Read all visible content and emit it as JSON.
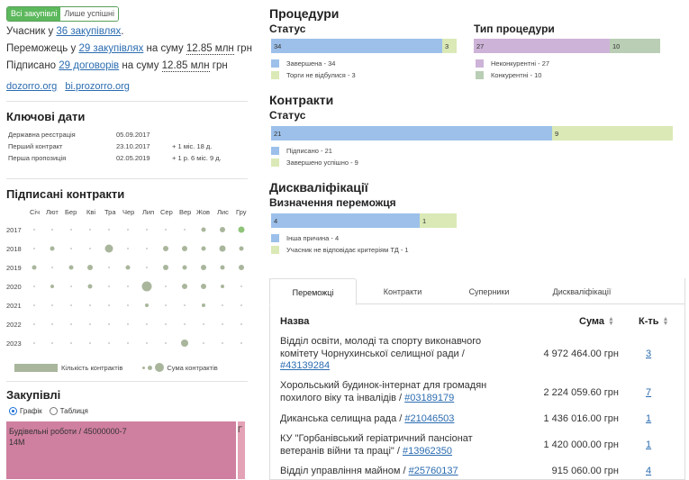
{
  "toggle": {
    "all": "Всі закупівлі",
    "won": "Лише успішні"
  },
  "summary": {
    "participant_prefix": "Учасник у ",
    "participant_link": "36 закупівлях",
    "participant_suffix": ".",
    "winner_prefix": "Переможець у ",
    "winner_link": "29 закупівлях",
    "winner_mid": " на суму ",
    "winner_amount": "12.85 млн",
    "winner_currency": " грн",
    "signed_prefix": "Підписано ",
    "signed_link": "29 договорів",
    "signed_mid": " на суму ",
    "signed_amount": "12.85 млн",
    "signed_currency": " грн"
  },
  "external_links": {
    "dozorro": "dozorro.org",
    "biprozorro": "bi.prozorro.org"
  },
  "key_dates": {
    "title": "Ключові дати",
    "rows": [
      {
        "label": "Державна реєстрація",
        "date": "05.09.2017",
        "delta": ""
      },
      {
        "label": "Перший контракт",
        "date": "23.10.2017",
        "delta": "+ 1 міс. 18 д."
      },
      {
        "label": "Перша пропозиція",
        "date": "02.05.2019",
        "delta": "+ 1 р. 6 міс. 9 д."
      }
    ]
  },
  "signed_contracts": {
    "title": "Підписані контракти",
    "months": [
      "Січ",
      "Лют",
      "Бер",
      "Кві",
      "Тра",
      "Чер",
      "Лип",
      "Сер",
      "Вер",
      "Жов",
      "Лис",
      "Гру"
    ],
    "years": [
      "2017",
      "2018",
      "2019",
      "2020",
      "2021",
      "2022",
      "2023"
    ],
    "legend_count": "Кількість контрактів",
    "legend_sum": "Сума контрактів"
  },
  "procurements": {
    "title": "Закупівлі",
    "radio_chart": "Графік",
    "radio_table": "Таблиця",
    "treemap_main_label": "Будівельні роботи / 45000000-7",
    "treemap_main_value": "14M",
    "treemap_side_label": "Г"
  },
  "procedures": {
    "title": "Процедури",
    "status_title": "Статус",
    "status_values": {
      "completed": "34",
      "failed": "3"
    },
    "status_legend": [
      "Завершена - 34",
      "Торги не відбулися - 3"
    ],
    "type_title": "Тип процедури",
    "type_values": {
      "noncompetitive": "27",
      "competitive": "10"
    },
    "type_legend": [
      "Неконкурентні - 27",
      "Конкурентні - 10"
    ]
  },
  "contracts": {
    "title": "Контракти",
    "status_title": "Статус",
    "values": {
      "signed": "21",
      "done": "9"
    },
    "legend": [
      "Підписано - 21",
      "Завершено успішно - 9"
    ]
  },
  "disqualifications": {
    "title": "Дискваліфікації",
    "sub_title": "Визначення переможця",
    "values": {
      "other": "4",
      "nonconform": "1"
    },
    "legend": [
      "Інша причина - 4",
      "Учасник не відповідає критеріям ТД - 1"
    ]
  },
  "tabs": [
    "Переможці",
    "Контракти",
    "Суперники",
    "Дискваліфікації"
  ],
  "table": {
    "col_name": "Назва",
    "col_sum": "Сума",
    "col_count": "К-ть",
    "rows": [
      {
        "name": "Відділ освіти, молоді та спорту виконавчого комітету Чорнухинської селищної ради / ",
        "code": "#43139284",
        "sum": "4 972 464.00 грн",
        "count": "3"
      },
      {
        "name": "Хорольський будинок-інтернат для громадян похилого віку та інвалідів / ",
        "code": "#03189179",
        "sum": "2 224 059.60 грн",
        "count": "7"
      },
      {
        "name": "Диканська селищна рада / ",
        "code": "#21046503",
        "sum": "1 436 016.00 грн",
        "count": "1"
      },
      {
        "name": "КУ \"Горбанівський геріатричний пансіонат ветеранів війни та праці\" / ",
        "code": "#13962350",
        "sum": "1 420 000.00 грн",
        "count": "1"
      },
      {
        "name": "Відділ управління майном / ",
        "code": "#25760137",
        "sum": "915 060.00 грн",
        "count": "4"
      }
    ]
  },
  "colors": {
    "blue": "#9cc0ea",
    "green": "#dae9b6",
    "purple": "#cdb3d8",
    "sage": "#b9ceb4",
    "treemap": "#cf7f9f",
    "accent": "#5cb85c"
  }
}
